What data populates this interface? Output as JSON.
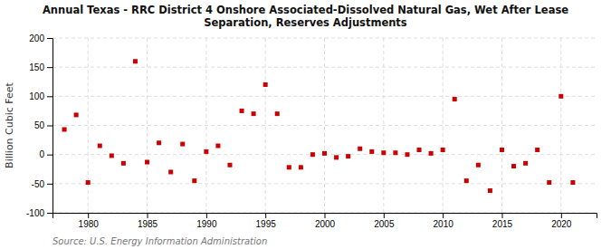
{
  "chart_data": {
    "type": "scatter",
    "title": "Annual Texas - RRC District 4 Onshore Associated-Dissolved Natural Gas, Wet After Lease\nSeparation, Reserves Adjustments",
    "y_label": "Billion Cubic Feet",
    "source": "Source: U.S. Energy Information Administration",
    "x": [
      1978,
      1979,
      1980,
      1981,
      1982,
      1983,
      1984,
      1985,
      1986,
      1987,
      1988,
      1989,
      1990,
      1991,
      1992,
      1993,
      1994,
      1995,
      1996,
      1997,
      1998,
      1999,
      2000,
      2001,
      2002,
      2003,
      2004,
      2005,
      2006,
      2007,
      2008,
      2009,
      2010,
      2011,
      2012,
      2013,
      2014,
      2015,
      2016,
      2017,
      2018,
      2019,
      2020,
      2021
    ],
    "values": [
      43,
      68,
      -48,
      15,
      -2,
      -15,
      160,
      -13,
      20,
      -30,
      18,
      -45,
      5,
      15,
      -18,
      75,
      70,
      120,
      70,
      -22,
      -22,
      0,
      2,
      -5,
      -3,
      10,
      5,
      3,
      3,
      0,
      8,
      2,
      8,
      95,
      -45,
      -18,
      -62,
      8,
      -20,
      -15,
      8,
      -48,
      100,
      -48
    ],
    "color": "#cc0000",
    "marker": "square",
    "xlim": [
      1977,
      2023
    ],
    "ylim": [
      -100,
      200
    ],
    "xticks": [
      1980,
      1985,
      1990,
      1995,
      2000,
      2005,
      2010,
      2015,
      2020
    ],
    "yticks": [
      -100,
      -50,
      0,
      50,
      100,
      150,
      200
    ],
    "grid": true
  }
}
